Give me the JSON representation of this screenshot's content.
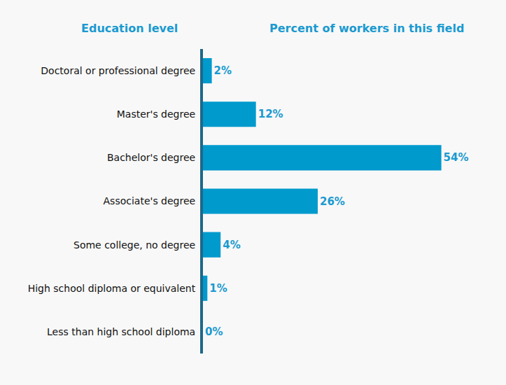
{
  "chart_data": {
    "type": "bar",
    "orientation": "horizontal",
    "y_label": "Education level",
    "x_label": "Percent of workers in this field",
    "categories": [
      "Doctoral or professional degree",
      "Master's degree",
      "Bachelor's degree",
      "Associate's degree",
      "Some college, no degree",
      "High school diploma or equivalent",
      "Less than high school diploma"
    ],
    "values": [
      2,
      12,
      54,
      26,
      4,
      1,
      0
    ],
    "value_labels": [
      "2%",
      "12%",
      "54%",
      "26%",
      "4%",
      "1%",
      "0%"
    ],
    "data_labels": true,
    "color": "#009acd",
    "xlim": [
      0,
      65
    ],
    "tick_labels": "y",
    "grid": false
  }
}
